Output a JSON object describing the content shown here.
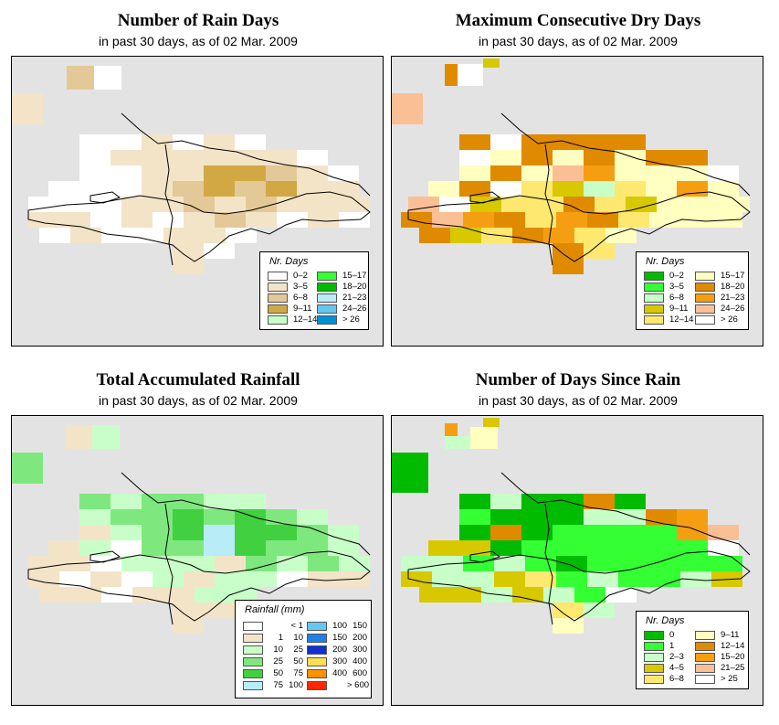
{
  "panels": {
    "rain_days": {
      "title": "Number of Rain Days",
      "subtitle": "in past 30 days, as of  02 Mar. 2009",
      "legend": {
        "title": "Nr. Days",
        "items": [
          {
            "label": "0–2",
            "color": "#ffffff"
          },
          {
            "label": "3–5",
            "color": "#f3e4c8"
          },
          {
            "label": "6–8",
            "color": "#e3c998"
          },
          {
            "label": "9–11",
            "color": "#d1a843"
          },
          {
            "label": "12–14",
            "color": "#c8ffc8"
          },
          {
            "label": "15–17",
            "color": "#33ff33"
          },
          {
            "label": "18–20",
            "color": "#00bb00"
          },
          {
            "label": "21–23",
            "color": "#b8ecf7"
          },
          {
            "label": "24–26",
            "color": "#63c7f0"
          },
          {
            "label": "> 26",
            "color": "#0090d8"
          }
        ]
      }
    },
    "dry_days": {
      "title": "Maximum Consecutive Dry Days",
      "subtitle": "in past 30 days, as of  02 Mar. 2009",
      "legend": {
        "title": "Nr. Days",
        "items": [
          {
            "label": "0–2",
            "color": "#00bb00"
          },
          {
            "label": "3–5",
            "color": "#33ff33"
          },
          {
            "label": "6–8",
            "color": "#c8ffc8"
          },
          {
            "label": "9–11",
            "color": "#d7c800"
          },
          {
            "label": "12–14",
            "color": "#ffe870"
          },
          {
            "label": "15–17",
            "color": "#ffffc0"
          },
          {
            "label": "18–20",
            "color": "#e08a00"
          },
          {
            "label": "21–23",
            "color": "#f59e12"
          },
          {
            "label": "24–26",
            "color": "#fbbf96"
          },
          {
            "label": "> 26",
            "color": "#ffffff"
          }
        ]
      }
    },
    "rainfall": {
      "title": "Total Accumulated Rainfall",
      "subtitle": "in past 30 days, as of  02 Mar. 2009",
      "legend": {
        "title": "Rainfall (mm)",
        "items": [
          {
            "lo": "",
            "hi": "< 1",
            "color": "#ffffff"
          },
          {
            "lo": "1",
            "hi": "10",
            "color": "#f3e4c8"
          },
          {
            "lo": "10",
            "hi": "25",
            "color": "#c8ffc8"
          },
          {
            "lo": "25",
            "hi": "50",
            "color": "#7ee87e"
          },
          {
            "lo": "50",
            "hi": "75",
            "color": "#40d040"
          },
          {
            "lo": "75",
            "hi": "100",
            "color": "#b8ecf7"
          },
          {
            "lo": "100",
            "hi": "150",
            "color": "#63c7f0"
          },
          {
            "lo": "150",
            "hi": "200",
            "color": "#2080e8"
          },
          {
            "lo": "200",
            "hi": "300",
            "color": "#1030d0"
          },
          {
            "lo": "300",
            "hi": "400",
            "color": "#ffe050"
          },
          {
            "lo": "400",
            "hi": "600",
            "color": "#ff9000"
          },
          {
            "lo": "",
            "hi": "> 600",
            "color": "#ff2800"
          }
        ]
      }
    },
    "days_since_rain": {
      "title": "Number of Days Since Rain",
      "subtitle": "in past 30 days, as of  02 Mar. 2009",
      "legend": {
        "title": "Nr. Days",
        "items": [
          {
            "label": "0",
            "color": "#00bb00"
          },
          {
            "label": "1",
            "color": "#33ff33"
          },
          {
            "label": "2–3",
            "color": "#c8ffc8"
          },
          {
            "label": "4–5",
            "color": "#d7c800"
          },
          {
            "label": "6–8",
            "color": "#ffe870"
          },
          {
            "label": "9–11",
            "color": "#ffffc0"
          },
          {
            "label": "12–14",
            "color": "#e08a00"
          },
          {
            "label": "15–20",
            "color": "#f59e12"
          },
          {
            "label": "21–25",
            "color": "#fbbf96"
          },
          {
            "label": "> 25",
            "color": "#ffffff"
          }
        ]
      }
    }
  }
}
